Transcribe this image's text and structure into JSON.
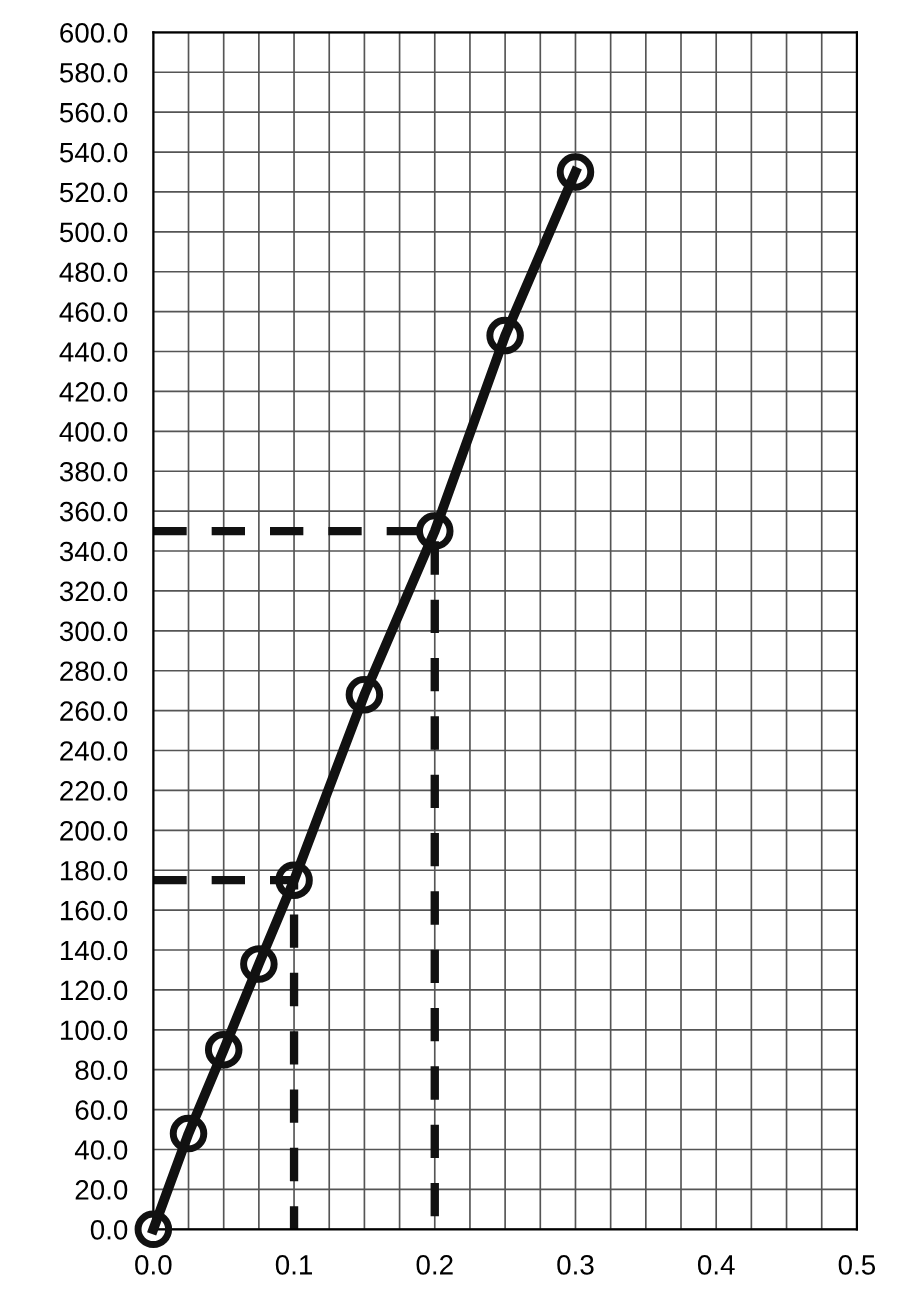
{
  "chart_data": {
    "type": "line",
    "grid": true,
    "marker": "circle",
    "line_style": "solid",
    "xlim": [
      0,
      0.5
    ],
    "ylim": [
      0,
      600
    ],
    "xticks": [
      {
        "value": 0,
        "label": "0.0"
      },
      {
        "value": 0.025,
        "label": null
      },
      {
        "value": 0.05,
        "label": null
      },
      {
        "value": 0.075,
        "label": null
      },
      0.1,
      {
        "value": 0.125,
        "label": null
      },
      {
        "value": 0.15,
        "label": null
      },
      {
        "value": 0.175,
        "label": null
      },
      0.2,
      {
        "value": 0.225,
        "label": null
      },
      {
        "value": 0.25,
        "label": null
      },
      {
        "value": 0.275,
        "label": null
      },
      0.3,
      {
        "value": 0.325,
        "label": null
      },
      {
        "value": 0.35,
        "label": null
      },
      {
        "value": 0.375,
        "label": null
      },
      0.4,
      {
        "value": 0.425,
        "label": null
      },
      {
        "value": 0.45,
        "label": null
      },
      {
        "value": 0.475,
        "label": null
      },
      0.5
    ],
    "yticks": [
      {
        "value": 0,
        "label": "0.0"
      },
      {
        "value": 20,
        "label": "20.0"
      },
      {
        "value": 40,
        "label": "40.0"
      },
      {
        "value": 60,
        "label": "60.0"
      },
      {
        "value": 80,
        "label": "80.0"
      },
      {
        "value": 100,
        "label": "100.0"
      },
      {
        "value": 120,
        "label": "120.0"
      },
      {
        "value": 140,
        "label": "140.0"
      },
      {
        "value": 160,
        "label": "160.0"
      },
      {
        "value": 180,
        "label": "180.0"
      },
      {
        "value": 200,
        "label": "200.0"
      },
      {
        "value": 220,
        "label": "220.0"
      },
      {
        "value": 240,
        "label": "240.0"
      },
      {
        "value": 260,
        "label": "260.0"
      },
      {
        "value": 280,
        "label": "280.0"
      },
      {
        "value": 300,
        "label": "300.0"
      },
      {
        "value": 320,
        "label": "320.0"
      },
      {
        "value": 340,
        "label": "340.0"
      },
      {
        "value": 360,
        "label": "360.0"
      },
      {
        "value": 380,
        "label": "380.0"
      },
      {
        "value": 400,
        "label": "400.0"
      },
      {
        "value": 420,
        "label": "420.0"
      },
      {
        "value": 440,
        "label": "440.0"
      },
      {
        "value": 460,
        "label": "460.0"
      },
      {
        "value": 480,
        "label": "480.0"
      },
      {
        "value": 500,
        "label": "500.0"
      },
      {
        "value": 520,
        "label": "520.0"
      },
      {
        "value": 540,
        "label": "540.0"
      },
      {
        "value": 560,
        "label": "560.0"
      },
      {
        "value": 580,
        "label": "580.0"
      },
      {
        "value": 600,
        "label": "600.0"
      }
    ],
    "series": [
      {
        "color": "#111111",
        "x": [
          0,
          0.025,
          0.05,
          0.075,
          0.1,
          0.15,
          0.2,
          0.25,
          0.3
        ],
        "values": [
          0,
          48,
          90,
          133,
          175,
          268,
          350,
          448,
          530
        ]
      },
      {
        "type": "line",
        "color": "#111111",
        "marker": "none",
        "line_style": "dashed",
        "x": [
          0,
          0.2,
          0.2
        ],
        "values": [
          350,
          350,
          0
        ]
      },
      {
        "type": "line",
        "color": "#111111",
        "marker": "none",
        "line_style": "dashed",
        "x": [
          0,
          0.1,
          0.1
        ],
        "values": [
          175,
          175,
          0
        ]
      }
    ]
  }
}
